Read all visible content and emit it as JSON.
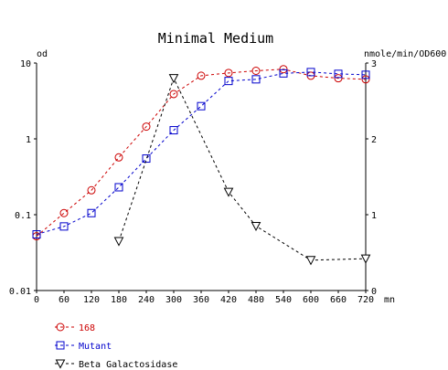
{
  "chart_data": {
    "type": "line",
    "title": "Minimal Medium",
    "y_left_label": "od",
    "y_right_label": "nmole/min/OD600",
    "x_unit": "mn",
    "x_ticks": [
      "0",
      "60",
      "120",
      "180",
      "240",
      "300",
      "360",
      "420",
      "480",
      "540",
      "600",
      "660",
      "720"
    ],
    "y_left_ticks": [
      "0.01",
      "0.1",
      "1",
      "10"
    ],
    "y_right_ticks": [
      "0",
      "1",
      "2",
      "3"
    ],
    "x_range": [
      0,
      720
    ],
    "y_left_range": [
      0.01,
      10
    ],
    "y_left_scale": "log",
    "y_right_range": [
      0,
      3
    ],
    "grid": false,
    "legend_position": "bottom-left",
    "series": [
      {
        "name": "168",
        "axis": "left",
        "color": "#cc0000",
        "marker": "circle",
        "x": [
          0,
          60,
          120,
          180,
          240,
          300,
          360,
          420,
          480,
          540,
          600,
          660,
          720
        ],
        "y": [
          0.052,
          0.105,
          0.21,
          0.57,
          1.45,
          3.9,
          6.8,
          7.4,
          7.9,
          8.3,
          6.8,
          6.3,
          6.1
        ]
      },
      {
        "name": "Mutant",
        "axis": "left",
        "color": "#0000cc",
        "marker": "square",
        "x": [
          0,
          60,
          120,
          180,
          240,
          300,
          360,
          420,
          480,
          540,
          600,
          660,
          720
        ],
        "y": [
          0.055,
          0.07,
          0.105,
          0.23,
          0.55,
          1.3,
          2.7,
          5.8,
          6.1,
          7.3,
          7.6,
          7.2,
          7.0
        ]
      },
      {
        "name": "Beta Galactosidase",
        "axis": "right",
        "color": "#000000",
        "marker": "triangle-down",
        "x": [
          180,
          300,
          420,
          480,
          600,
          720
        ],
        "y": [
          0.65,
          2.8,
          1.3,
          0.85,
          0.4,
          0.42
        ]
      }
    ]
  }
}
